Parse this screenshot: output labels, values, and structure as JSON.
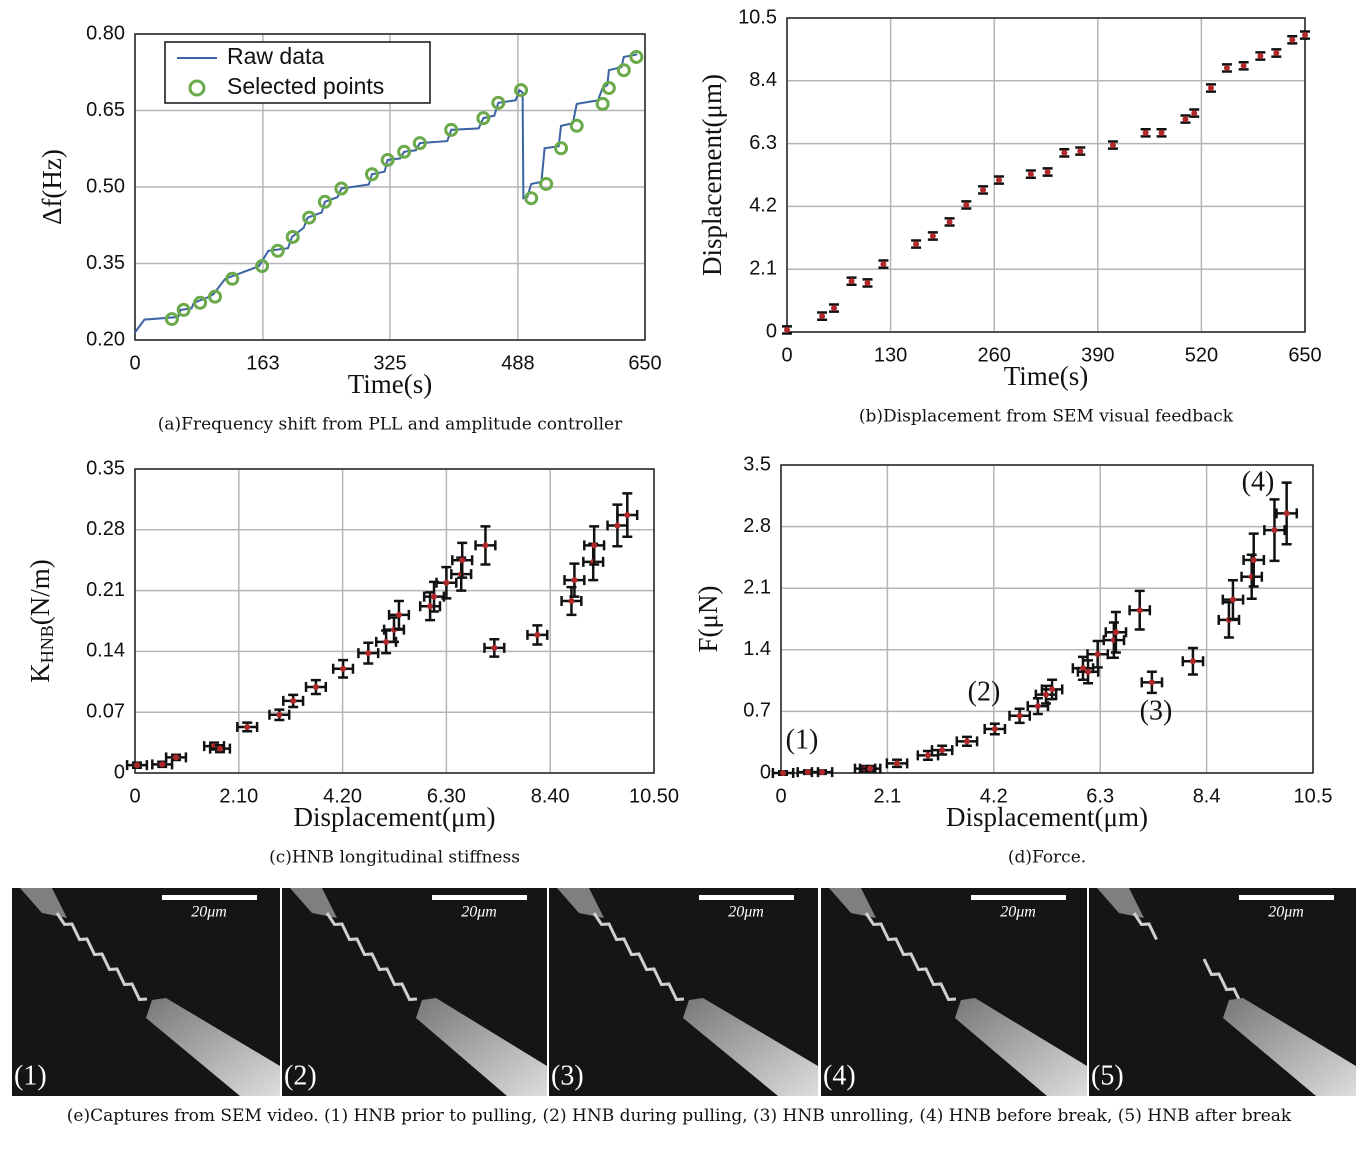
{
  "chart_data": [
    {
      "type": "line",
      "caption": "(a)Frequency shift from PLL and amplitude controller",
      "x_label": "Time(s)",
      "y_label": "Δf(Hz)",
      "xlim": [
        0,
        650
      ],
      "xticks": [
        0,
        163,
        325,
        488,
        650
      ],
      "ylim": [
        0.2,
        0.8
      ],
      "yticks": [
        {
          "value": 0.2,
          "label": "0.20"
        },
        0.35,
        {
          "value": 0.5,
          "label": "0.50"
        },
        0.65,
        {
          "value": 0.8,
          "label": "0.80"
        }
      ],
      "grid": true,
      "legend": "upper left",
      "series": [
        {
          "name": "Raw data",
          "type": "line",
          "color": "#3b63a3",
          "x": [
            0,
            12,
            55,
            58,
            72,
            75,
            95,
            100,
            115,
            150,
            158,
            170,
            195,
            200,
            215,
            220,
            238,
            242,
            258,
            263,
            298,
            302,
            318,
            322,
            338,
            343,
            358,
            363,
            398,
            403,
            438,
            444,
            458,
            463,
            485,
            490,
            494,
            495,
            500,
            505,
            518,
            522,
            540,
            543,
            558,
            563,
            590,
            596,
            602,
            604,
            620,
            623,
            640
          ],
          "y": [
            0.215,
            0.24,
            0.245,
            0.259,
            0.262,
            0.273,
            0.285,
            0.29,
            0.32,
            0.34,
            0.345,
            0.375,
            0.38,
            0.402,
            0.42,
            0.44,
            0.45,
            0.471,
            0.48,
            0.497,
            0.505,
            0.525,
            0.53,
            0.553,
            0.556,
            0.569,
            0.572,
            0.586,
            0.59,
            0.612,
            0.615,
            0.635,
            0.64,
            0.665,
            0.67,
            0.69,
            0.685,
            0.478,
            0.48,
            0.506,
            0.51,
            0.576,
            0.58,
            0.62,
            0.625,
            0.663,
            0.67,
            0.694,
            0.7,
            0.729,
            0.735,
            0.755,
            0.76
          ]
        },
        {
          "name": "Selected points",
          "type": "scatter",
          "marker": "open-circle",
          "color": "#6aaa4a",
          "x": [
            47,
            62,
            83,
            102,
            124,
            162,
            182,
            201,
            222,
            242,
            263,
            302,
            322,
            343,
            363,
            403,
            444,
            463,
            492,
            505,
            524,
            543,
            563,
            596,
            604,
            623,
            639
          ],
          "y": [
            0.241,
            0.259,
            0.273,
            0.285,
            0.32,
            0.345,
            0.375,
            0.402,
            0.44,
            0.471,
            0.497,
            0.525,
            0.553,
            0.569,
            0.586,
            0.612,
            0.635,
            0.665,
            0.69,
            0.478,
            0.506,
            0.576,
            0.62,
            0.663,
            0.694,
            0.729,
            0.755
          ]
        }
      ]
    },
    {
      "type": "scatter",
      "caption": "(b)Displacement from SEM visual feedback",
      "x_label": "Time(s)",
      "y_label": "Displacement(μm)",
      "xlim": [
        0,
        650
      ],
      "xticks": [
        0,
        130,
        260,
        390,
        520,
        650
      ],
      "ylim": [
        0,
        10.5
      ],
      "yticks": [
        0,
        2.1,
        4.2,
        6.3,
        8.4,
        10.5
      ],
      "grid": true,
      "series": [
        {
          "type": "scatter",
          "color": "#b0282a",
          "error_color": "#111111",
          "x": [
            0,
            44,
            59,
            81,
            101,
            121,
            162,
            183,
            204,
            225,
            246,
            266,
            306,
            327,
            348,
            368,
            409,
            450,
            470,
            500,
            511,
            532,
            552,
            573,
            594,
            614,
            634,
            650
          ],
          "y": [
            0.07,
            0.53,
            0.8,
            1.7,
            1.64,
            2.27,
            2.94,
            3.21,
            3.68,
            4.25,
            4.75,
            5.08,
            5.28,
            5.35,
            5.99,
            6.05,
            6.25,
            6.66,
            6.66,
            7.12,
            7.32,
            8.16,
            8.83,
            8.9,
            9.23,
            9.33,
            9.77,
            9.93
          ],
          "y_errors": [
            0.12,
            0.12,
            0.12,
            0.12,
            0.12,
            0.12,
            0.12,
            0.12,
            0.12,
            0.12,
            0.12,
            0.12,
            0.12,
            0.12,
            0.12,
            0.12,
            0.12,
            0.12,
            0.12,
            0.12,
            0.12,
            0.12,
            0.12,
            0.12,
            0.12,
            0.12,
            0.12,
            0.12
          ]
        }
      ]
    },
    {
      "type": "scatter",
      "caption": "(c)HNB longitudinal stiffness",
      "x_label": "Displacement(μm)",
      "y_label": {
        "main": "K",
        "sub": "HNB",
        "rest": "(N/m)"
      },
      "xlim": [
        0,
        10.5
      ],
      "xticks": [
        0,
        {
          "value": 2.1,
          "label": "2.10"
        },
        {
          "value": 4.2,
          "label": "4.20"
        },
        {
          "value": 6.3,
          "label": "6.30"
        },
        {
          "value": 8.4,
          "label": "8.40"
        },
        {
          "value": 10.5,
          "label": "10.50"
        }
      ],
      "ylim": [
        0,
        0.35
      ],
      "yticks": [
        0,
        0.07,
        0.14,
        0.21,
        0.28,
        0.35
      ],
      "grid": true,
      "series": [
        {
          "type": "scatter",
          "color": "#b0282a",
          "error_color": "#111111",
          "x": [
            0.04,
            0.55,
            0.83,
            1.6,
            1.72,
            2.27,
            2.92,
            3.2,
            3.66,
            4.21,
            4.72,
            5.08,
            5.24,
            5.34,
            5.97,
            6.05,
            6.3,
            6.6,
            6.62,
            7.09,
            7.27,
            8.14,
            8.83,
            8.89,
            9.27,
            9.29,
            9.76,
            9.96
          ],
          "y": [
            0.009,
            0.01,
            0.018,
            0.031,
            0.028,
            0.053,
            0.067,
            0.083,
            0.099,
            0.12,
            0.138,
            0.151,
            0.165,
            0.182,
            0.192,
            0.203,
            0.219,
            0.229,
            0.245,
            0.262,
            0.144,
            0.159,
            0.198,
            0.222,
            0.243,
            0.262,
            0.285,
            0.297
          ],
          "y_errors": [
            0.003,
            0.003,
            0.003,
            0.004,
            0.004,
            0.005,
            0.006,
            0.007,
            0.008,
            0.01,
            0.012,
            0.013,
            0.014,
            0.016,
            0.016,
            0.017,
            0.018,
            0.019,
            0.02,
            0.022,
            0.01,
            0.011,
            0.016,
            0.019,
            0.021,
            0.022,
            0.024,
            0.025
          ],
          "x_errors": [
            0.2,
            0.2,
            0.2,
            0.2,
            0.2,
            0.2,
            0.2,
            0.2,
            0.2,
            0.2,
            0.2,
            0.2,
            0.2,
            0.2,
            0.2,
            0.2,
            0.2,
            0.2,
            0.2,
            0.2,
            0.2,
            0.2,
            0.2,
            0.2,
            0.2,
            0.2,
            0.2,
            0.2
          ]
        }
      ]
    },
    {
      "type": "scatter",
      "caption": "(d)Force.",
      "x_label": "Displacement(μm)",
      "y_label": "F(μN)",
      "xlim": [
        0,
        10.5
      ],
      "xticks": [
        0,
        2.1,
        4.2,
        6.3,
        8.4,
        10.5
      ],
      "ylim": [
        0,
        3.5
      ],
      "yticks": [
        0,
        0.7,
        1.4,
        2.1,
        2.8,
        3.5
      ],
      "grid": true,
      "annotations": [
        "(1)",
        "(2)",
        "(3)",
        "(4)"
      ],
      "series": [
        {
          "type": "scatter",
          "color": "#b0282a",
          "error_color": "#111111",
          "x": [
            0.04,
            0.53,
            0.81,
            1.66,
            1.76,
            2.29,
            2.9,
            3.18,
            3.67,
            4.22,
            4.71,
            5.07,
            5.23,
            5.35,
            5.96,
            6.06,
            6.25,
            6.57,
            6.61,
            7.08,
            7.32,
            8.13,
            8.84,
            8.92,
            9.29,
            9.33,
            9.74,
            9.98
          ],
          "y": [
            0,
            0.01,
            0.01,
            0.05,
            0.05,
            0.11,
            0.2,
            0.26,
            0.36,
            0.5,
            0.65,
            0.76,
            0.89,
            0.95,
            1.19,
            1.15,
            1.35,
            1.51,
            1.6,
            1.85,
            1.03,
            1.27,
            1.74,
            1.97,
            2.23,
            2.42,
            2.76,
            2.95
          ],
          "y_errors": [
            0.02,
            0.02,
            0.02,
            0.03,
            0.03,
            0.04,
            0.05,
            0.05,
            0.05,
            0.06,
            0.08,
            0.09,
            0.1,
            0.11,
            0.13,
            0.13,
            0.15,
            0.2,
            0.23,
            0.22,
            0.12,
            0.15,
            0.2,
            0.22,
            0.25,
            0.3,
            0.35,
            0.35
          ],
          "x_errors": [
            0.2,
            0.2,
            0.2,
            0.2,
            0.2,
            0.2,
            0.2,
            0.2,
            0.2,
            0.2,
            0.2,
            0.2,
            0.2,
            0.2,
            0.2,
            0.2,
            0.2,
            0.2,
            0.2,
            0.2,
            0.2,
            0.2,
            0.2,
            0.2,
            0.2,
            0.2,
            0.2,
            0.2
          ]
        }
      ]
    }
  ],
  "panel_e": {
    "images": [
      {
        "label": "(1)",
        "scale_bar": "20μm"
      },
      {
        "label": "(2)",
        "scale_bar": "20μm"
      },
      {
        "label": "(3)",
        "scale_bar": "20μm"
      },
      {
        "label": "(4)",
        "scale_bar": "20μm"
      },
      {
        "label": "(5)",
        "scale_bar": "20μm"
      }
    ],
    "caption": "(e)Captures from SEM video. (1) HNB prior to pulling, (2) HNB during pulling, (3) HNB unrolling, (4) HNB before break, (5) HNB after break"
  }
}
